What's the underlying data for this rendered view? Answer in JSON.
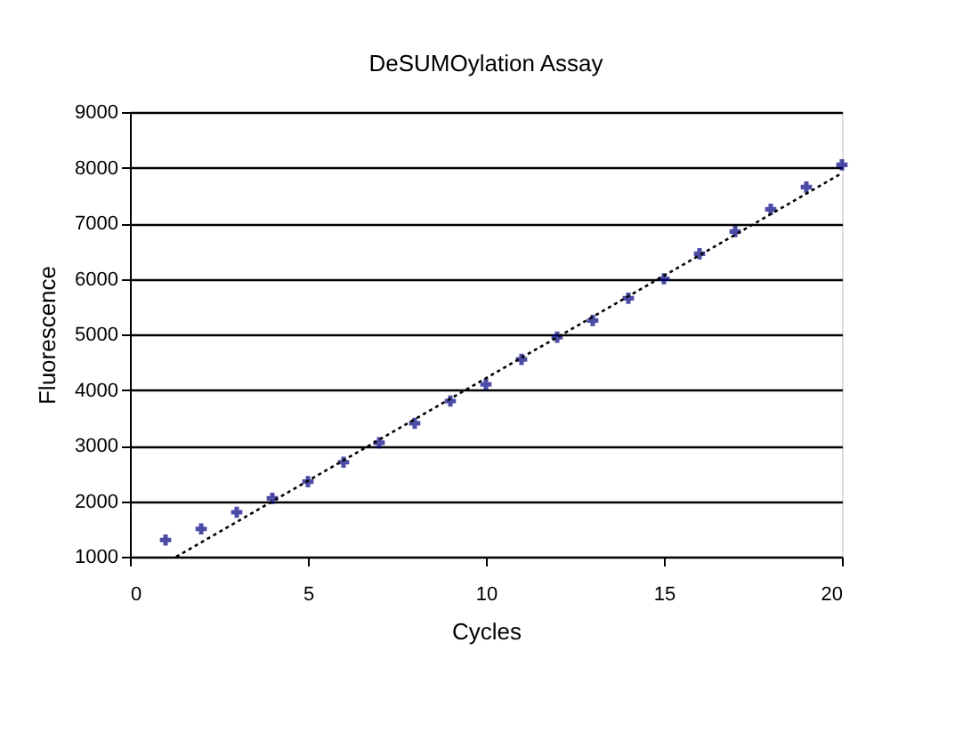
{
  "chart_data": {
    "type": "scatter",
    "title": "DeSUMOylation Assay",
    "xlabel": "Cycles",
    "ylabel": "Fluorescence",
    "xlim": [
      0,
      20
    ],
    "xticks": [
      0,
      5,
      10,
      15,
      20
    ],
    "ylim": [
      1000,
      9000
    ],
    "yticks": [
      1000,
      2000,
      3000,
      4000,
      5000,
      6000,
      7000,
      8000,
      9000
    ],
    "grid": "y",
    "series": [
      {
        "color": "#000080",
        "marker": "cross",
        "x": [
          1,
          2,
          3,
          4,
          5,
          6,
          7,
          8,
          9,
          10,
          11,
          12,
          13,
          14,
          15,
          16,
          17,
          18,
          19,
          20
        ],
        "values": [
          1300,
          1500,
          1800,
          2050,
          2350,
          2700,
          3050,
          3400,
          3800,
          4100,
          4550,
          4950,
          5250,
          5650,
          6000,
          6450,
          6850,
          7250,
          7650,
          8050
        ]
      },
      {
        "type": "line",
        "color": "#000000",
        "line_style": "dotted",
        "marker": "none",
        "x": [
          1.3,
          20
        ],
        "values": [
          1000,
          7900
        ]
      }
    ]
  }
}
